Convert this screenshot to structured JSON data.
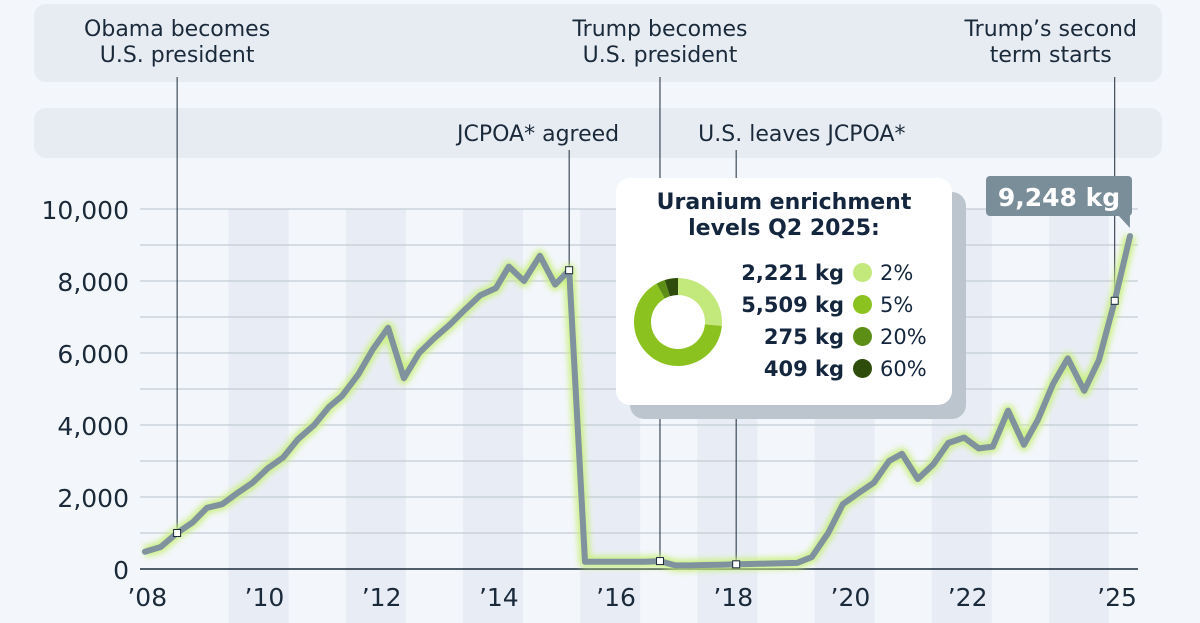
{
  "chart_data": {
    "type": "line",
    "title": "",
    "xlabel": "",
    "ylabel": "",
    "ylim": [
      0,
      10000
    ],
    "xlim": [
      2008,
      2025.6
    ],
    "grid": true,
    "y_ticks": [
      {
        "value": 0,
        "label": "0"
      },
      {
        "value": 2000,
        "label": "2,000"
      },
      {
        "value": 4000,
        "label": "4,000"
      },
      {
        "value": 6000,
        "label": "6,000"
      },
      {
        "value": 8000,
        "label": "8,000"
      },
      {
        "value": 10000,
        "label": "10,000"
      }
    ],
    "x_ticks": [
      {
        "value": 2008,
        "label": "’08"
      },
      {
        "value": 2010,
        "label": "’10"
      },
      {
        "value": 2012,
        "label": "’12"
      },
      {
        "value": 2014,
        "label": "’14"
      },
      {
        "value": 2016,
        "label": "’16"
      },
      {
        "value": 2018,
        "label": "’18"
      },
      {
        "value": 2020,
        "label": "’20"
      },
      {
        "value": 2022,
        "label": "’22"
      },
      {
        "value": 2025,
        "label": "’25"
      }
    ],
    "series": [
      {
        "color": "#7f929e",
        "glow": "#c9f07c",
        "points": [
          [
            2008.51,
            480
          ],
          [
            2008.78,
            610
          ],
          [
            2009.06,
            1000
          ],
          [
            2009.33,
            1300
          ],
          [
            2009.57,
            1700
          ],
          [
            2009.83,
            1800
          ],
          [
            2010.08,
            2100
          ],
          [
            2010.35,
            2400
          ],
          [
            2010.61,
            2800
          ],
          [
            2010.87,
            3100
          ],
          [
            2011.12,
            3600
          ],
          [
            2011.4,
            4000
          ],
          [
            2011.65,
            4500
          ],
          [
            2011.87,
            4800
          ],
          [
            2012.15,
            5400
          ],
          [
            2012.4,
            6100
          ],
          [
            2012.66,
            6700
          ],
          [
            2012.93,
            5300
          ],
          [
            2013.19,
            6000
          ],
          [
            2013.44,
            6400
          ],
          [
            2013.72,
            6800
          ],
          [
            2013.97,
            7200
          ],
          [
            2014.23,
            7600
          ],
          [
            2014.5,
            7800
          ],
          [
            2014.72,
            8400
          ],
          [
            2014.98,
            8000
          ],
          [
            2015.25,
            8700
          ],
          [
            2015.51,
            7900
          ],
          [
            2015.75,
            8300
          ],
          [
            2016.02,
            200
          ],
          [
            2016.28,
            200
          ],
          [
            2016.53,
            200
          ],
          [
            2016.79,
            200
          ],
          [
            2017.04,
            200
          ],
          [
            2017.3,
            220
          ],
          [
            2017.56,
            100
          ],
          [
            2017.81,
            100
          ],
          [
            2018.07,
            110
          ],
          [
            2018.34,
            120
          ],
          [
            2018.6,
            130
          ],
          [
            2018.85,
            140
          ],
          [
            2019.11,
            150
          ],
          [
            2019.38,
            160
          ],
          [
            2019.64,
            170
          ],
          [
            2019.89,
            330
          ],
          [
            2020.17,
            1000
          ],
          [
            2020.42,
            1800
          ],
          [
            2020.68,
            2100
          ],
          [
            2020.95,
            2400
          ],
          [
            2021.21,
            3000
          ],
          [
            2021.43,
            3200
          ],
          [
            2021.7,
            2500
          ],
          [
            2021.96,
            2900
          ],
          [
            2022.22,
            3500
          ],
          [
            2022.49,
            3650
          ],
          [
            2022.74,
            3350
          ],
          [
            2022.98,
            3400
          ],
          [
            2023.24,
            4400
          ],
          [
            2023.51,
            3450
          ],
          [
            2023.75,
            4150
          ],
          [
            2024.01,
            5150
          ],
          [
            2024.26,
            5850
          ],
          [
            2024.54,
            4950
          ],
          [
            2024.79,
            5800
          ],
          [
            2025.06,
            7450
          ],
          [
            2025.32,
            9248
          ]
        ]
      }
    ],
    "last_value_label": "9,248 kg",
    "events": [
      {
        "x": 2009.06,
        "value": 1000,
        "label_lines": [
          "Obama becomes",
          "U.S. president"
        ],
        "row": "top"
      },
      {
        "x": 2015.75,
        "value": 8300,
        "label_lines": [
          "JCPOA* agreed"
        ],
        "row": "second"
      },
      {
        "x": 2017.3,
        "value": 220,
        "label_lines": [
          "Trump becomes",
          "U.S. president"
        ],
        "row": "top"
      },
      {
        "x": 2018.6,
        "value": 130,
        "label_lines": [
          "U.S. leaves JCPOA*"
        ],
        "row": "second"
      },
      {
        "x": 2025.06,
        "value": 7450,
        "label_lines": [
          "Trump’s second",
          "term starts"
        ],
        "row": "top"
      }
    ],
    "inset": {
      "title_lines": [
        "Uranium enrichment",
        "levels Q2 2025:"
      ],
      "type": "pie",
      "slices": [
        {
          "kg": 2221,
          "kg_label": "2,221 kg",
          "level": "2%",
          "color": "#c3e87c"
        },
        {
          "kg": 5509,
          "kg_label": "5,509 kg",
          "level": "5%",
          "color": "#8cc220"
        },
        {
          "kg": 275,
          "kg_label": "275 kg",
          "level": "20%",
          "color": "#5d8f17"
        },
        {
          "kg": 409,
          "kg_label": "409 kg",
          "level": "60%",
          "color": "#2e4c0c"
        }
      ]
    }
  }
}
